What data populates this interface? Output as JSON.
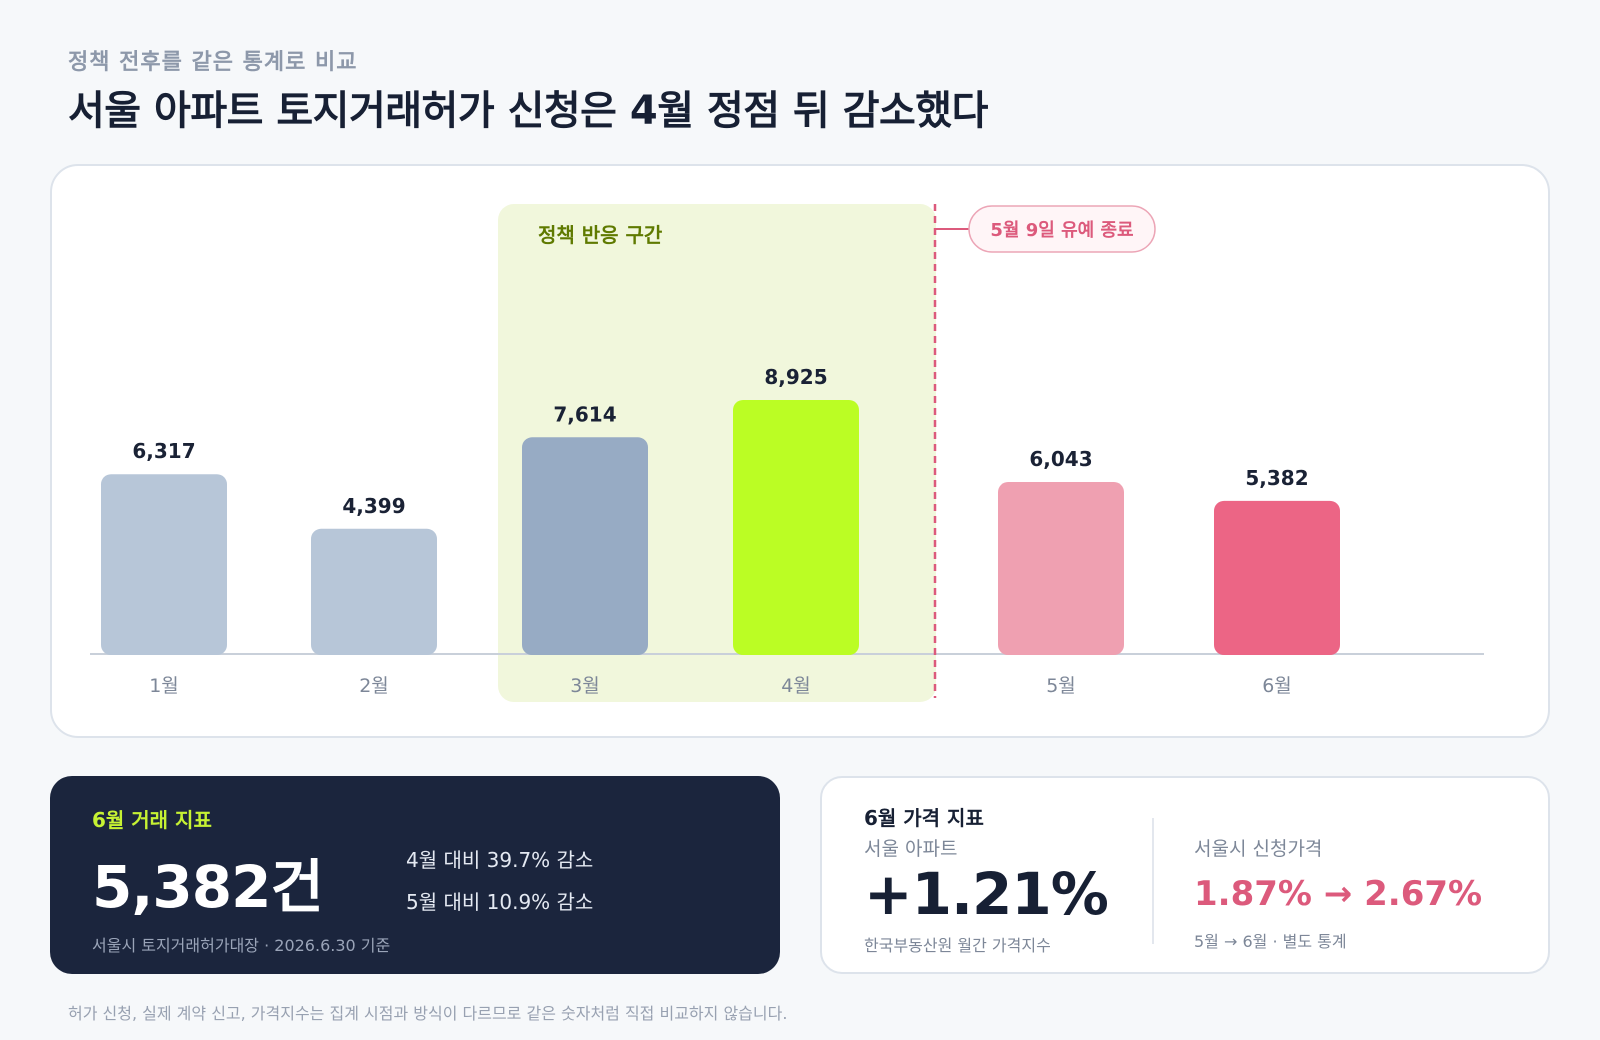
{
  "header": {
    "kicker": "정책 전후를 같은 통계로 비교",
    "title": "서울 아파트 토지거래허가 신청은 4월 정점 뒤 감소했다"
  },
  "chart_data": {
    "type": "bar",
    "categories": [
      "1월",
      "2월",
      "3월",
      "4월",
      "5월",
      "6월"
    ],
    "values": [
      6317,
      4399,
      7614,
      8925,
      6043,
      5382
    ],
    "value_labels": [
      "6,317",
      "4,399",
      "7,614",
      "8,925",
      "6,043",
      "5,382"
    ],
    "bar_colors": [
      "#b7c6d8",
      "#b7c6d8",
      "#97abc4",
      "#bbfd24",
      "#efa0b1",
      "#ec6585"
    ],
    "ylim": [
      0,
      10000
    ],
    "grid": false,
    "highlight": {
      "label": "정책 반응 구간",
      "categories": [
        "3월",
        "4월"
      ],
      "color": "#f1f7dc",
      "label_color": "#5f7a00"
    },
    "marker": {
      "label": "5월 9일 유예 종료",
      "between": [
        "4월",
        "5월"
      ],
      "color": "#dc5a7c"
    }
  },
  "trade_panel": {
    "title": "6월 거래 지표",
    "value": "5,382",
    "unit": "건",
    "stat1": "4월 대비 39.7% 감소",
    "stat2": "5월 대비 10.9% 감소",
    "source": "서울시 토지거래허가대장 · 2026.6.30 기준"
  },
  "price_panel": {
    "title": "6월 가격 지표",
    "left_label": "서울 아파트",
    "left_value": "+1.21%",
    "left_source": "한국부동산원 월간 가격지수",
    "right_label": "서울시 신청가격",
    "right_value": "1.87% → 2.67%",
    "right_source": "5월 → 6월 · 별도 통계"
  },
  "footnote": "허가 신청, 실제 계약 신고, 가격지수는 집계 시점과 방식이 다르므로 같은 숫자처럼 직접 비교하지 않습니다."
}
